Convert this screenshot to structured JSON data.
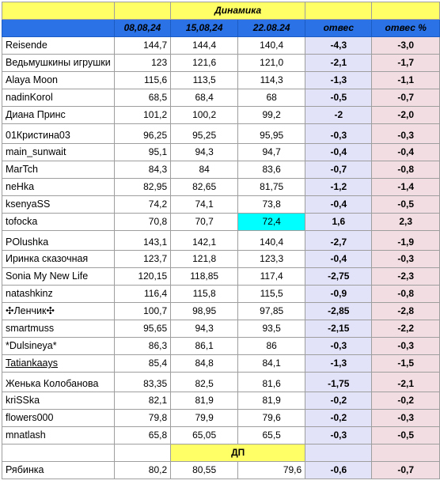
{
  "title": "Динамика",
  "headers": [
    "",
    "08,08,24",
    "15,08,24",
    "22.08.24",
    "отвес",
    "отвес %"
  ],
  "section_label": "ДП",
  "rows": [
    {
      "name": "Reisende",
      "v1": "144,7",
      "v2": "144,4",
      "v3": "140,4",
      "d": "-4,3",
      "p": "-3,0"
    },
    {
      "name": "Ведьмушкины игрушки",
      "v1": "123",
      "v2": "121,6",
      "v3": "121,0",
      "d": "-2,1",
      "p": "-1,7"
    },
    {
      "name": "Alaya Moon",
      "v1": "115,6",
      "v2": "113,5",
      "v3": "114,3",
      "d": "-1,3",
      "p": "-1,1"
    },
    {
      "name": " nadinKorol",
      "v1": "68,5",
      "v2": "68,4",
      "v3": "68",
      "d": "-0,5",
      "p": "-0,7"
    },
    {
      "name": "Диана Принс",
      "v1": "101,2",
      "v2": "100,2",
      "v3": "99,2",
      "d": "-2",
      "p": "-2,0"
    },
    {
      "name": "01Кристина03",
      "v1": "96,25",
      "v2": "95,25",
      "v3": "95,95",
      "d": "-0,3",
      "p": "-0,3"
    },
    {
      "name": "main_sunwait",
      "v1": "95,1",
      "v2": "94,3",
      "v3": "94,7",
      "d": "-0,4",
      "p": "-0,4"
    },
    {
      "name": "MarTch",
      "v1": "84,3",
      "v2": "84",
      "v3": "83,6",
      "d": "-0,7",
      "p": "-0,8"
    },
    {
      "name": "neHka",
      "v1": "82,95",
      "v2": "82,65",
      "v3": "81,75",
      "d": "-1,2",
      "p": "-1,4"
    },
    {
      "name": "ksenyaSS",
      "v1": "74,2",
      "v2": "74,1",
      "v3": "73,8",
      "d": "-0,4",
      "p": "-0,5"
    },
    {
      "name": "tofocka",
      "v1": "70,8",
      "v2": "70,7",
      "v3": "72,4",
      "d": "1,6",
      "p": "2,3"
    },
    {
      "name": "POlushka",
      "v1": "143,1",
      "v2": "142,1",
      "v3": "140,4",
      "d": "-2,7",
      "p": "-1,9"
    },
    {
      "name": "Иринка сказочная",
      "v1": "123,7",
      "v2": "121,8",
      "v3": "123,3",
      "d": "-0,4",
      "p": "-0,3"
    },
    {
      "name": "Sonia My New Life",
      "v1": "120,15",
      "v2": "118,85",
      "v3": "117,4",
      "d": "-2,75",
      "p": "-2,3"
    },
    {
      "name": "natashkinz",
      "v1": "116,4",
      "v2": "115,8",
      "v3": "115,5",
      "d": "-0,9",
      "p": "-0,8"
    },
    {
      "name": "✣Ленчик✣",
      "v1": "100,7",
      "v2": "98,95",
      "v3": "97,85",
      "d": "-2,85",
      "p": "-2,8"
    },
    {
      "name": "smartmuss",
      "v1": "95,65",
      "v2": "94,3",
      "v3": "93,5",
      "d": "-2,15",
      "p": "-2,2"
    },
    {
      "name": "*Dulsineya*",
      "v1": "86,3",
      "v2": "86,1",
      "v3": "86",
      "d": "-0,3",
      "p": "-0,3"
    },
    {
      "name": " Tatiankaays",
      "v1": "85,4",
      "v2": "84,8",
      "v3": "84,1",
      "d": "-1,3",
      "p": "-1,5"
    },
    {
      "name": "Женька Колобанова",
      "v1": "83,35",
      "v2": "82,5",
      "v3": "81,6",
      "d": "-1,75",
      "p": "-2,1"
    },
    {
      "name": "kriSSka",
      "v1": "82,1",
      "v2": "81,9",
      "v3": "81,9",
      "d": "-0,2",
      "p": "-0,2"
    },
    {
      "name": " flowers000",
      "v1": "79,8",
      "v2": "79,9",
      "v3": "79,6",
      "d": "-0,2",
      "p": "-0,3"
    },
    {
      "name": "mnatlash",
      "v1": "65,8",
      "v2": "65,05",
      "v3": "65,5",
      "d": "-0,3",
      "p": "-0,5"
    }
  ],
  "dp_row": {
    "name": " Рябинка",
    "v1": "80,2",
    "v2": "80,55",
    "v3": "79,6",
    "d": "-0,6",
    "p": "-0,7"
  }
}
